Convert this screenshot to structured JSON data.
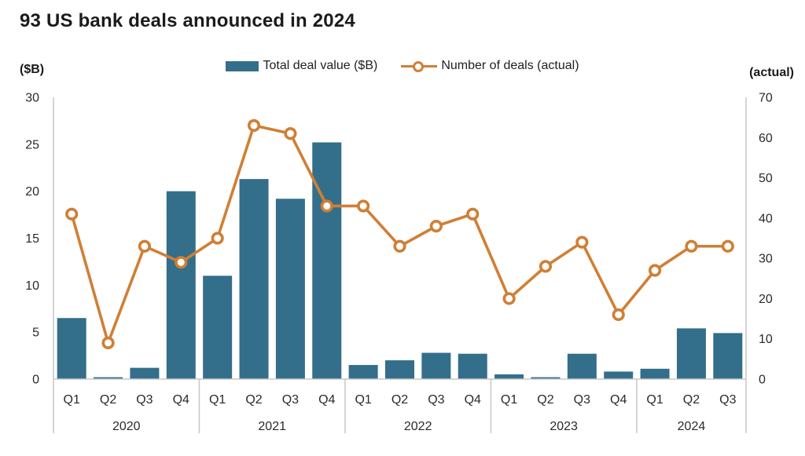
{
  "title": "93 US bank deals announced in 2024",
  "chart_data": {
    "type": "bar+line combo",
    "title": "93 US bank deals announced in 2024",
    "grid": "off",
    "legend_position": "top-center",
    "left_axis": {
      "label": "($B)",
      "min": 0,
      "max": 30,
      "ticks": [
        0,
        5,
        10,
        15,
        20,
        25,
        30
      ]
    },
    "right_axis": {
      "label": "(actual)",
      "min": 0,
      "max": 70,
      "ticks": [
        0,
        10,
        20,
        30,
        40,
        50,
        60,
        70
      ]
    },
    "years": [
      {
        "label": "2020",
        "quarters": [
          "Q1",
          "Q2",
          "Q3",
          "Q4"
        ]
      },
      {
        "label": "2021",
        "quarters": [
          "Q1",
          "Q2",
          "Q3",
          "Q4"
        ]
      },
      {
        "label": "2022",
        "quarters": [
          "Q1",
          "Q2",
          "Q3",
          "Q4"
        ]
      },
      {
        "label": "2023",
        "quarters": [
          "Q1",
          "Q2",
          "Q3",
          "Q4"
        ]
      },
      {
        "label": "2024",
        "quarters": [
          "Q1",
          "Q2",
          "Q3"
        ]
      }
    ],
    "series": [
      {
        "name": "Total deal value ($B)",
        "type": "bar",
        "axis": "left",
        "color": "#336E8A",
        "values": [
          6.5,
          0.2,
          1.2,
          20.0,
          11.0,
          21.3,
          19.2,
          25.2,
          1.5,
          2.0,
          2.8,
          2.7,
          0.5,
          0.2,
          2.7,
          0.8,
          1.1,
          5.4,
          4.9
        ]
      },
      {
        "name": "Number of deals (actual)",
        "type": "line",
        "axis": "right",
        "color": "#D07F35",
        "values": [
          41,
          9,
          33,
          29,
          35,
          63,
          61,
          43,
          43,
          33,
          38,
          41,
          20,
          28,
          34,
          16,
          27,
          33,
          33
        ]
      }
    ],
    "axis_line_color": "#C7C7C7"
  }
}
